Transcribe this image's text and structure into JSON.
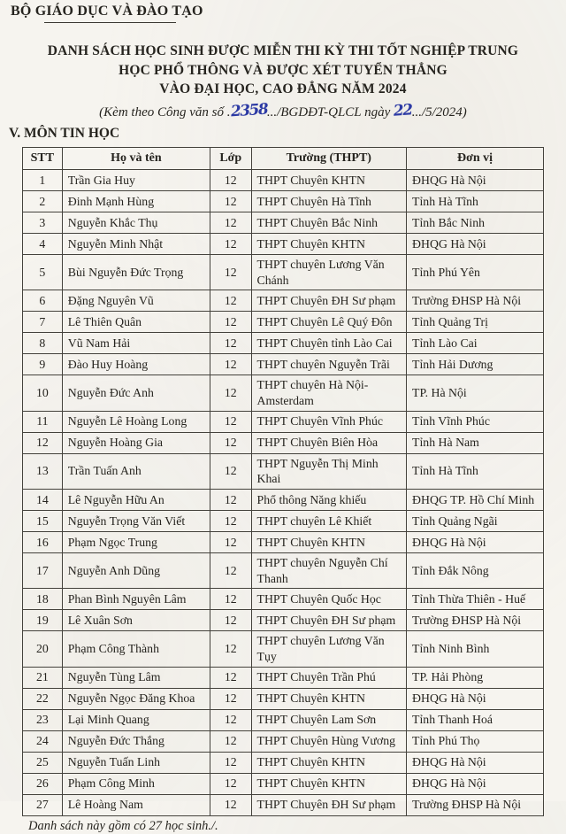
{
  "document": {
    "ministry": "BỘ GIÁO DỤC VÀ ĐÀO TẠO",
    "title_lines": [
      "DANH SÁCH HỌC SINH ĐƯỢC MIỄN THI KỲ THI TỐT NGHIỆP TRUNG",
      "HỌC PHỔ THÔNG VÀ ĐƯỢC XÉT TUYỂN THẲNG",
      "VÀO ĐẠI HỌC, CAO ĐẲNG NĂM 2024"
    ],
    "subtitle": {
      "prefix": "(Kèm theo Công văn số .",
      "doc_number_handwritten": "2358",
      "middle": ".../BGDĐT-QLCL ngày ",
      "day_handwritten": "22",
      "suffix": ".../5/2024)"
    },
    "section": "V. MÔN TIN HỌC",
    "footer": "Danh sách này gồm có 27 học sinh./."
  },
  "table": {
    "headers": [
      "STT",
      "Họ và tên",
      "Lớp",
      "Trường (THPT)",
      "Đơn vị"
    ],
    "rows": [
      [
        "1",
        "Trần Gia Huy",
        "12",
        "THPT Chuyên KHTN",
        "ĐHQG Hà Nội"
      ],
      [
        "2",
        "Đinh Mạnh Hùng",
        "12",
        "THPT Chuyên Hà Tĩnh",
        "Tỉnh Hà Tĩnh"
      ],
      [
        "3",
        "Nguyễn Khắc Thụ",
        "12",
        "THPT Chuyên Bắc Ninh",
        "Tỉnh Bắc Ninh"
      ],
      [
        "4",
        "Nguyễn Minh Nhật",
        "12",
        "THPT Chuyên KHTN",
        "ĐHQG Hà Nội"
      ],
      [
        "5",
        "Bùi Nguyễn Đức Trọng",
        "12",
        "THPT chuyên Lương Văn Chánh",
        "Tỉnh Phú Yên"
      ],
      [
        "6",
        "Đặng Nguyên Vũ",
        "12",
        "THPT Chuyên ĐH Sư phạm",
        "Trường ĐHSP Hà Nội"
      ],
      [
        "7",
        "Lê Thiên Quân",
        "12",
        "THPT Chuyên Lê Quý Đôn",
        "Tỉnh Quảng Trị"
      ],
      [
        "8",
        "Vũ Nam Hải",
        "12",
        "THPT Chuyên tỉnh Lào Cai",
        "Tỉnh Lào Cai"
      ],
      [
        "9",
        "Đào Huy Hoàng",
        "12",
        "THPT chuyên Nguyễn Trãi",
        "Tỉnh Hải Dương"
      ],
      [
        "10",
        "Nguyễn Đức Anh",
        "12",
        "THPT chuyên Hà Nội-Amsterdam",
        "TP. Hà Nội"
      ],
      [
        "11",
        "Nguyễn Lê Hoàng Long",
        "12",
        "THPT Chuyên Vĩnh Phúc",
        "Tỉnh Vĩnh Phúc"
      ],
      [
        "12",
        "Nguyễn Hoàng Gia",
        "12",
        "THPT Chuyên Biên Hòa",
        "Tỉnh Hà Nam"
      ],
      [
        "13",
        "Trần Tuấn Anh",
        "12",
        "THPT Nguyễn Thị Minh Khai",
        "Tỉnh Hà Tĩnh"
      ],
      [
        "14",
        "Lê Nguyễn Hữu An",
        "12",
        "Phổ thông Năng khiếu",
        "ĐHQG TP. Hồ Chí Minh"
      ],
      [
        "15",
        "Nguyễn Trọng Văn Viết",
        "12",
        "THPT chuyên Lê Khiết",
        "Tỉnh Quảng Ngãi"
      ],
      [
        "16",
        "Phạm Ngọc Trung",
        "12",
        "THPT Chuyên KHTN",
        "ĐHQG Hà Nội"
      ],
      [
        "17",
        "Nguyễn Anh Dũng",
        "12",
        "THPT chuyên Nguyễn Chí Thanh",
        "Tỉnh Đắk Nông"
      ],
      [
        "18",
        "Phan Bình Nguyên Lâm",
        "12",
        "THPT Chuyên Quốc Học",
        "Tỉnh Thừa Thiên - Huế"
      ],
      [
        "19",
        "Lê Xuân Sơn",
        "12",
        "THPT Chuyên ĐH Sư phạm",
        "Trường ĐHSP Hà Nội"
      ],
      [
        "20",
        "Phạm Công Thành",
        "12",
        "THPT chuyên Lương Văn Tụy",
        "Tỉnh Ninh Bình"
      ],
      [
        "21",
        "Nguyễn Tùng Lâm",
        "12",
        "THPT Chuyên Trần Phú",
        "TP. Hải Phòng"
      ],
      [
        "22",
        "Nguyễn Ngọc Đăng Khoa",
        "12",
        "THPT Chuyên KHTN",
        "ĐHQG Hà Nội"
      ],
      [
        "23",
        "Lại Minh Quang",
        "12",
        "THPT Chuyên Lam Sơn",
        "Tỉnh Thanh Hoá"
      ],
      [
        "24",
        "Nguyễn Đức Thắng",
        "12",
        "THPT Chuyên Hùng Vương",
        "Tỉnh Phú Thọ"
      ],
      [
        "25",
        "Nguyễn Tuấn Linh",
        "12",
        "THPT Chuyên KHTN",
        "ĐHQG Hà Nội"
      ],
      [
        "26",
        "Phạm Công Minh",
        "12",
        "THPT Chuyên KHTN",
        "ĐHQG Hà Nội"
      ],
      [
        "27",
        "Lê Hoàng Nam",
        "12",
        "THPT Chuyên ĐH Sư phạm",
        "Trường ĐHSP Hà Nội"
      ]
    ]
  },
  "colors": {
    "paper": "#f6f4ef",
    "ink_text": "#26241f",
    "ink_handwriting_blue": "#2c3aa4",
    "table_border": "#44423c"
  }
}
